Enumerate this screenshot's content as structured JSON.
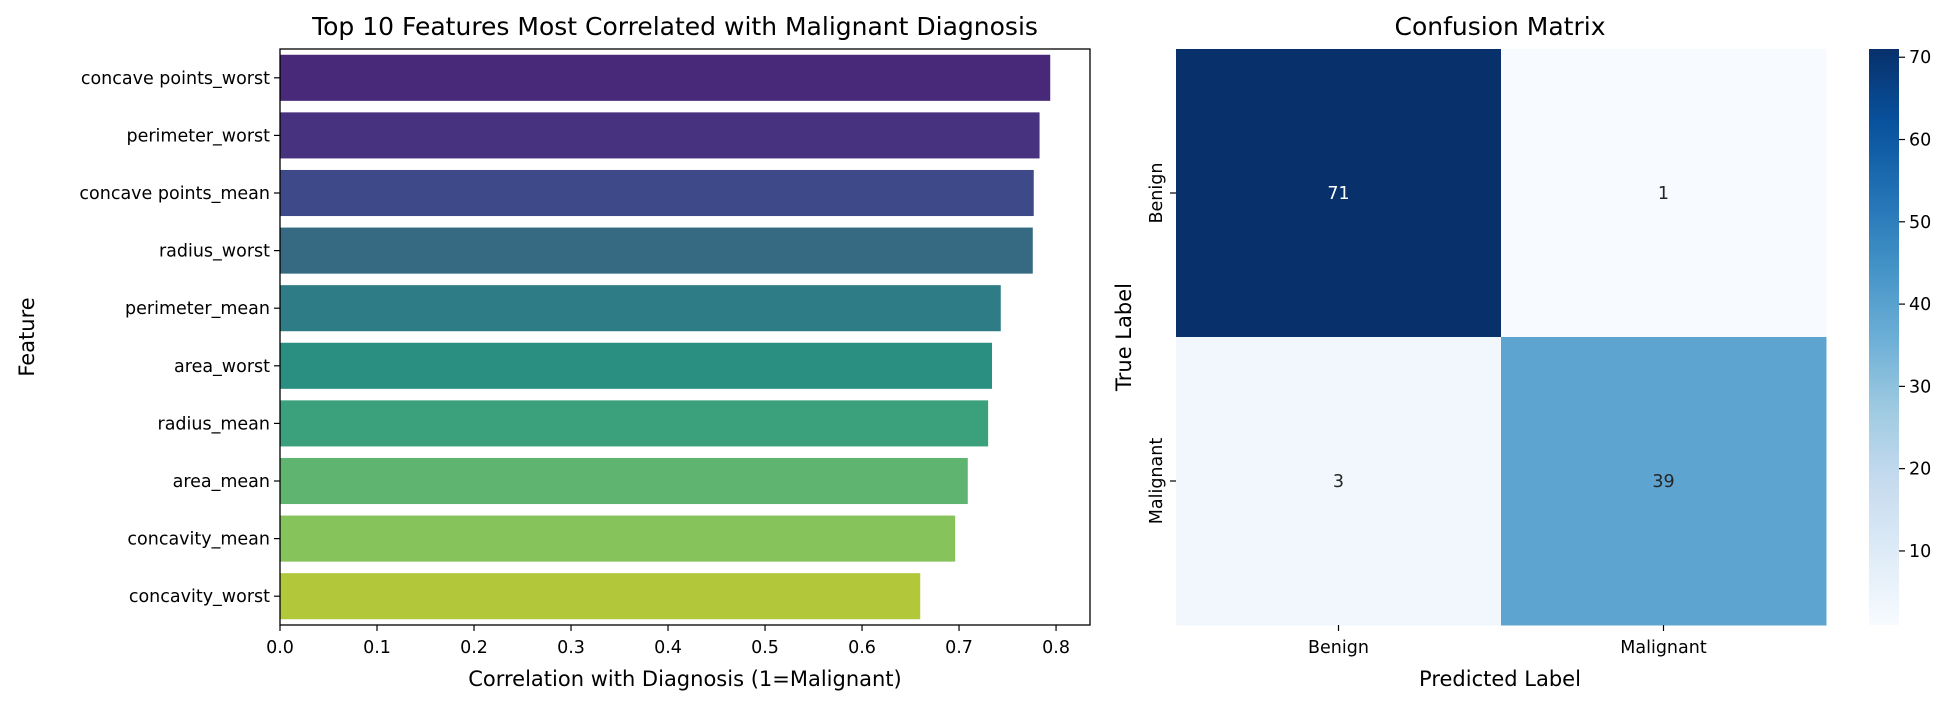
{
  "chart_data": [
    {
      "type": "bar",
      "orientation": "horizontal",
      "title": "Top 10 Features Most Correlated with Malignant Diagnosis",
      "xlabel": "Correlation with Diagnosis (1=Malignant)",
      "ylabel": "Feature",
      "categories": [
        "concave points_worst",
        "perimeter_worst",
        "concave points_mean",
        "radius_worst",
        "perimeter_mean",
        "area_worst",
        "radius_mean",
        "area_mean",
        "concavity_mean",
        "concavity_worst"
      ],
      "values": [
        0.794,
        0.783,
        0.777,
        0.776,
        0.743,
        0.734,
        0.73,
        0.709,
        0.696,
        0.66
      ],
      "colors": [
        "#482878",
        "#46327e",
        "#3e4989",
        "#366a82",
        "#2d7c86",
        "#2a8f80",
        "#3aa17c",
        "#5fb56f",
        "#86c35a",
        "#b2c83a"
      ],
      "xlim": [
        0,
        0.835
      ],
      "xticks": [
        "0.0",
        "0.1",
        "0.2",
        "0.3",
        "0.4",
        "0.5",
        "0.6",
        "0.7",
        "0.8"
      ],
      "grid": false
    },
    {
      "type": "heatmap",
      "title": "Confusion Matrix",
      "xlabel": "Predicted Label",
      "ylabel": "True Label",
      "x_categories": [
        "Benign",
        "Malignant"
      ],
      "y_categories": [
        "Benign",
        "Malignant"
      ],
      "values": [
        [
          71,
          1
        ],
        [
          3,
          39
        ]
      ],
      "colormap": "Blues",
      "colorbar": {
        "range": [
          1,
          71
        ],
        "ticks": [
          "10",
          "20",
          "30",
          "40",
          "50",
          "60",
          "70"
        ]
      }
    }
  ]
}
